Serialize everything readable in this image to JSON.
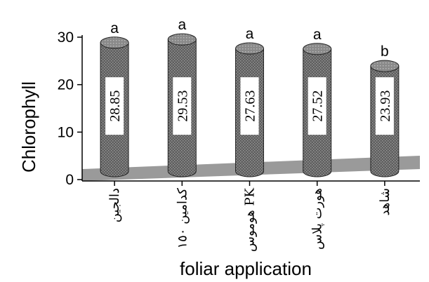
{
  "chart_data": {
    "type": "bar",
    "title": "",
    "xlabel": "foliar application",
    "ylabel": "Chlorophyll",
    "ylim": [
      0,
      30
    ],
    "yticks": [
      "0",
      "10",
      "20",
      "30"
    ],
    "grid": false,
    "legend": "none",
    "categories": [
      "دالجين",
      "كدامين ١٥٠",
      "هوموس PK",
      "هورت پلاس",
      "شاهد"
    ],
    "values": [
      28.85,
      29.53,
      27.63,
      27.52,
      23.93
    ],
    "value_labels": [
      "28.85",
      "29.53",
      "27.63",
      "27.52",
      "23.93"
    ],
    "significance": [
      "a",
      "a",
      "a",
      "a",
      "b"
    ],
    "colors": {
      "bar": "#6b6b6b",
      "bar_top": "#8a8a8a",
      "floor": "#9a9a9a",
      "label_box": "#ffffff"
    }
  }
}
